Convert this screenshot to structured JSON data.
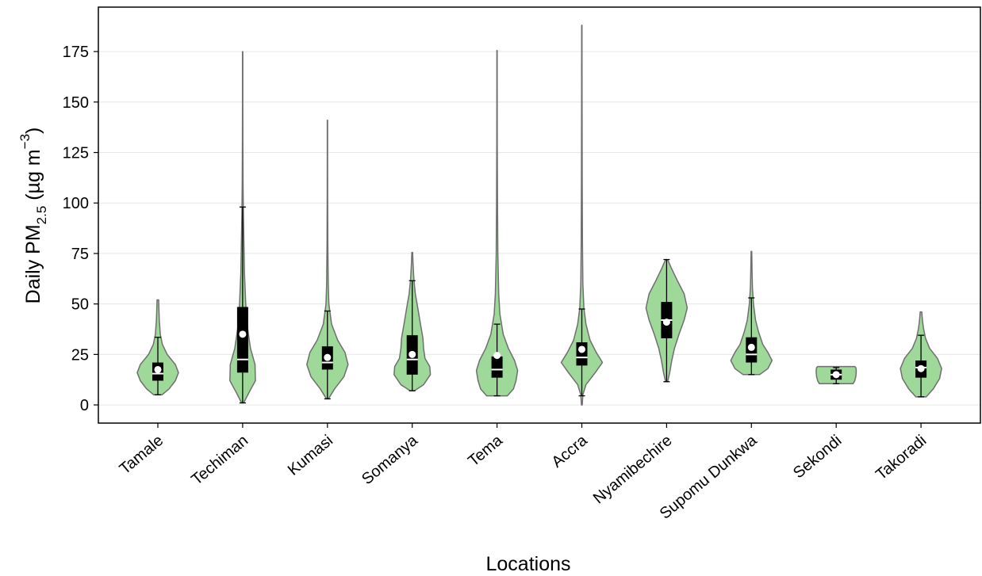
{
  "chart_data": {
    "type": "violin",
    "xlabel": "Locations",
    "ylabel": {
      "prefix": "Daily PM",
      "subscript": "2.5",
      "units_open": " (µg m",
      "superscript": "−3",
      "units_close": ")"
    },
    "ylim": [
      -9,
      197
    ],
    "yticks": [
      0,
      25,
      50,
      75,
      100,
      125,
      150,
      175
    ],
    "grid": "horizontal",
    "violin_color": "#9fd99a",
    "violin_edge": "#6f6f6f",
    "box_color": "#000000",
    "categories": [
      {
        "name": "Tamale",
        "min": 5,
        "q1": 12,
        "median": 15.5,
        "q3": 21,
        "mean": 17.5,
        "whisker_low": 5,
        "whisker_high": 33.5,
        "max": 52,
        "density": [
          [
            5,
            0.2
          ],
          [
            8,
            0.55
          ],
          [
            12,
            0.85
          ],
          [
            16,
            1.0
          ],
          [
            20,
            0.85
          ],
          [
            25,
            0.45
          ],
          [
            30,
            0.22
          ],
          [
            35,
            0.12
          ],
          [
            42,
            0.07
          ],
          [
            48,
            0.05
          ],
          [
            52,
            0.04
          ]
        ]
      },
      {
        "name": "Techiman",
        "min": 1,
        "q1": 16,
        "median": 22.5,
        "q3": 48.5,
        "mean": 35,
        "whisker_low": 1,
        "whisker_high": 98,
        "max": 175,
        "density": [
          [
            1,
            0.05
          ],
          [
            6,
            0.3
          ],
          [
            12,
            0.62
          ],
          [
            20,
            0.6
          ],
          [
            28,
            0.38
          ],
          [
            38,
            0.24
          ],
          [
            50,
            0.15
          ],
          [
            65,
            0.09
          ],
          [
            80,
            0.06
          ],
          [
            95,
            0.035
          ],
          [
            110,
            0.02
          ],
          [
            130,
            0.012
          ],
          [
            150,
            0.008
          ],
          [
            175,
            0.006
          ]
        ]
      },
      {
        "name": "Kumasi",
        "min": 3,
        "q1": 17.5,
        "median": 21,
        "q3": 29,
        "mean": 23.5,
        "whisker_low": 3,
        "whisker_high": 46.5,
        "max": 141,
        "density": [
          [
            3,
            0.05
          ],
          [
            8,
            0.35
          ],
          [
            14,
            0.8
          ],
          [
            20,
            1.0
          ],
          [
            26,
            0.85
          ],
          [
            32,
            0.5
          ],
          [
            40,
            0.2
          ],
          [
            50,
            0.07
          ],
          [
            60,
            0.04
          ],
          [
            80,
            0.02
          ],
          [
            100,
            0.012
          ],
          [
            120,
            0.008
          ],
          [
            141,
            0.006
          ]
        ]
      },
      {
        "name": "Somanya",
        "min": 7,
        "q1": 15,
        "median": 22.5,
        "q3": 34.5,
        "mean": 25,
        "whisker_low": 7,
        "whisker_high": 61.5,
        "max": 75.5,
        "density": [
          [
            7,
            0.1
          ],
          [
            10,
            0.55
          ],
          [
            15,
            0.88
          ],
          [
            19,
            0.85
          ],
          [
            23,
            0.62
          ],
          [
            28,
            0.55
          ],
          [
            33,
            0.52
          ],
          [
            40,
            0.4
          ],
          [
            48,
            0.27
          ],
          [
            55,
            0.15
          ],
          [
            62,
            0.08
          ],
          [
            70,
            0.04
          ],
          [
            75.5,
            0.02
          ]
        ]
      },
      {
        "name": "Tema",
        "min": 4.5,
        "q1": 13.5,
        "median": 17.5,
        "q3": 24,
        "mean": 24.5,
        "whisker_low": 4.5,
        "whisker_high": 40,
        "max": 175.5,
        "density": [
          [
            4.5,
            0.5
          ],
          [
            8,
            0.8
          ],
          [
            12,
            0.92
          ],
          [
            17,
            1.0
          ],
          [
            22,
            0.85
          ],
          [
            28,
            0.55
          ],
          [
            35,
            0.3
          ],
          [
            45,
            0.14
          ],
          [
            55,
            0.08
          ],
          [
            75,
            0.04
          ],
          [
            100,
            0.022
          ],
          [
            130,
            0.012
          ],
          [
            160,
            0.008
          ],
          [
            175.5,
            0.006
          ]
        ]
      },
      {
        "name": "Accra",
        "min": 0,
        "q1": 19.5,
        "median": 23.5,
        "q3": 31,
        "mean": 27.5,
        "whisker_low": 4.5,
        "whisker_high": 47.5,
        "max": 188,
        "density": [
          [
            0,
            0.02
          ],
          [
            5,
            0.05
          ],
          [
            10,
            0.2
          ],
          [
            16,
            0.65
          ],
          [
            21,
            1.0
          ],
          [
            26,
            0.7
          ],
          [
            32,
            0.4
          ],
          [
            40,
            0.2
          ],
          [
            48,
            0.1
          ],
          [
            60,
            0.05
          ],
          [
            80,
            0.03
          ],
          [
            110,
            0.018
          ],
          [
            150,
            0.01
          ],
          [
            188,
            0.006
          ]
        ]
      },
      {
        "name": "Nyamibechire",
        "min": 11.5,
        "q1": 33,
        "median": 42,
        "q3": 51,
        "mean": 41,
        "whisker_low": 11.5,
        "whisker_high": 72,
        "max": 72,
        "density": [
          [
            11.5,
            0.05
          ],
          [
            16,
            0.15
          ],
          [
            22,
            0.25
          ],
          [
            28,
            0.38
          ],
          [
            35,
            0.6
          ],
          [
            42,
            0.85
          ],
          [
            48,
            1.0
          ],
          [
            55,
            0.85
          ],
          [
            62,
            0.5
          ],
          [
            68,
            0.22
          ],
          [
            72,
            0.05
          ]
        ]
      },
      {
        "name": "Supomu Dunkwa",
        "min": 15,
        "q1": 21,
        "median": 25,
        "q3": 33.5,
        "mean": 28.5,
        "whisker_low": 15,
        "whisker_high": 53,
        "max": 76,
        "density": [
          [
            15,
            0.4
          ],
          [
            18,
            0.8
          ],
          [
            22,
            1.0
          ],
          [
            26,
            0.8
          ],
          [
            30,
            0.55
          ],
          [
            36,
            0.35
          ],
          [
            42,
            0.2
          ],
          [
            50,
            0.1
          ],
          [
            58,
            0.05
          ],
          [
            66,
            0.03
          ],
          [
            76,
            0.015
          ]
        ]
      },
      {
        "name": "Sekondi",
        "min": 10.5,
        "q1": 12.5,
        "median": 15,
        "q3": 17.5,
        "mean": 15,
        "whisker_low": 10.5,
        "whisker_high": 18.5,
        "max": 19,
        "density": [
          [
            10.5,
            0.82
          ],
          [
            12,
            0.9
          ],
          [
            14,
            0.95
          ],
          [
            16,
            0.97
          ],
          [
            17.5,
            0.97
          ],
          [
            18.5,
            0.95
          ],
          [
            19,
            0.9
          ]
        ]
      },
      {
        "name": "Takoradi",
        "min": 4,
        "q1": 13.5,
        "median": 18.5,
        "q3": 22,
        "mean": 18,
        "whisker_low": 4,
        "whisker_high": 34.5,
        "max": 46,
        "density": [
          [
            4,
            0.25
          ],
          [
            8,
            0.6
          ],
          [
            13,
            0.9
          ],
          [
            18,
            1.0
          ],
          [
            23,
            0.8
          ],
          [
            28,
            0.42
          ],
          [
            33,
            0.22
          ],
          [
            38,
            0.12
          ],
          [
            42,
            0.07
          ],
          [
            46,
            0.04
          ]
        ]
      }
    ]
  }
}
